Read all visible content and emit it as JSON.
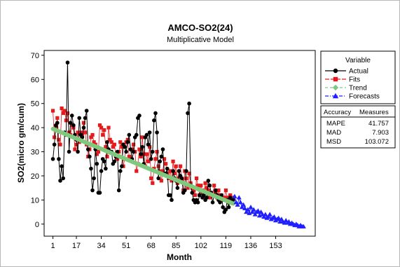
{
  "chart_data": {
    "type": "line",
    "title": "AMCO-SO2(24)",
    "subtitle": "Multiplicative Model",
    "xlabel": "Month",
    "ylabel": "SO2(micro gm/cum)",
    "xlim": [
      -5,
      180
    ],
    "ylim": [
      -5,
      72
    ],
    "x_ticks": [
      1,
      17,
      34,
      51,
      68,
      85,
      102,
      119,
      136,
      153
    ],
    "y_ticks": [
      0,
      10,
      20,
      30,
      40,
      50,
      60,
      70
    ],
    "grid": false,
    "legend_position": "right",
    "legend_title": "Variable",
    "series": [
      {
        "name": "Actual",
        "color": "#000000",
        "marker": "circle",
        "x": [
          1,
          2,
          3,
          4,
          5,
          6,
          7,
          8,
          9,
          10,
          11,
          12,
          13,
          14,
          15,
          16,
          17,
          18,
          19,
          20,
          21,
          22,
          23,
          24,
          25,
          26,
          27,
          28,
          29,
          30,
          31,
          32,
          33,
          34,
          35,
          36,
          37,
          38,
          39,
          40,
          41,
          42,
          43,
          44,
          45,
          46,
          47,
          48,
          49,
          50,
          51,
          52,
          53,
          54,
          55,
          56,
          57,
          58,
          59,
          60,
          61,
          62,
          63,
          64,
          65,
          66,
          67,
          68,
          69,
          70,
          71,
          72,
          73,
          74,
          75,
          76,
          77,
          78,
          79,
          80,
          81,
          82,
          83,
          84,
          85,
          86,
          87,
          88,
          89,
          90,
          91,
          92,
          93,
          94,
          95,
          96,
          97,
          98,
          99,
          100,
          101,
          102,
          103,
          104,
          105,
          106,
          107,
          108,
          109,
          110,
          111,
          112,
          113,
          114,
          115,
          116,
          117,
          118,
          119,
          120,
          121,
          122,
          123,
          124
        ],
        "values": [
          27,
          33,
          41,
          42,
          27,
          18,
          24,
          19,
          38,
          37,
          67,
          30,
          42,
          45,
          41,
          37,
          35,
          30,
          44,
          37,
          36,
          40,
          44,
          47,
          31,
          28,
          23,
          14,
          19,
          31,
          25,
          13,
          13,
          22,
          27,
          26,
          23,
          34,
          31,
          30,
          30,
          25,
          26,
          28,
          30,
          14,
          22,
          24,
          33,
          32,
          30,
          34,
          37,
          31,
          27,
          30,
          36,
          37,
          44,
          45,
          29,
          32,
          25,
          36,
          37,
          33,
          38,
          27,
          30,
          43,
          46,
          38,
          19,
          26,
          28,
          31,
          21,
          21,
          23,
          12,
          12,
          10,
          22,
          19,
          18,
          15,
          22,
          20,
          19,
          13,
          14,
          22,
          46,
          50,
          16,
          13,
          10,
          9,
          10,
          9,
          12,
          14,
          11,
          12,
          10,
          11,
          18,
          16,
          13,
          9,
          12,
          14,
          12,
          10,
          9,
          12,
          7,
          5,
          6,
          10,
          7,
          11,
          9,
          10
        ]
      },
      {
        "name": "Fits",
        "color": "#e41a1c",
        "marker": "square",
        "x": [
          1,
          2,
          3,
          4,
          5,
          6,
          7,
          8,
          9,
          10,
          11,
          12,
          13,
          14,
          15,
          16,
          17,
          18,
          19,
          20,
          21,
          22,
          23,
          24,
          25,
          26,
          27,
          28,
          29,
          30,
          31,
          32,
          33,
          34,
          35,
          36,
          37,
          38,
          39,
          40,
          41,
          42,
          43,
          44,
          45,
          46,
          47,
          48,
          49,
          50,
          51,
          52,
          53,
          54,
          55,
          56,
          57,
          58,
          59,
          60,
          61,
          62,
          63,
          64,
          65,
          66,
          67,
          68,
          69,
          70,
          71,
          72,
          73,
          74,
          75,
          76,
          77,
          78,
          79,
          80,
          81,
          82,
          83,
          84,
          85,
          86,
          87,
          88,
          89,
          90,
          91,
          92,
          93,
          94,
          95,
          96,
          97,
          98,
          99,
          100,
          101,
          102,
          103,
          104,
          105,
          106,
          107,
          108,
          109,
          110,
          111,
          112,
          113,
          114,
          115,
          116,
          117,
          118,
          119,
          120,
          121,
          122,
          123,
          124
        ],
        "values": [
          47,
          36,
          40,
          44,
          35,
          33,
          48,
          46,
          47,
          43,
          46,
          38,
          37,
          41,
          40,
          31,
          33,
          38,
          34,
          38,
          37,
          42,
          38,
          33,
          28,
          31,
          36,
          37,
          34,
          33,
          29,
          30,
          41,
          40,
          37,
          39,
          32,
          28,
          40,
          35,
          34,
          32,
          33,
          28,
          27,
          30,
          34,
          32,
          24,
          27,
          34,
          35,
          28,
          27,
          31,
          33,
          30,
          22,
          25,
          31,
          28,
          36,
          29,
          24,
          29,
          26,
          32,
          19,
          17,
          23,
          27,
          30,
          24,
          22,
          18,
          22,
          27,
          25,
          21,
          19,
          22,
          18,
          26,
          21,
          24,
          17,
          19,
          24,
          18,
          14,
          22,
          19,
          15,
          21,
          17,
          15,
          14,
          12,
          19,
          16,
          12,
          16,
          14,
          13,
          17,
          15,
          14,
          11,
          13,
          12,
          16,
          13,
          11,
          14,
          12,
          12,
          10,
          11,
          14,
          11,
          9,
          12,
          10,
          11
        ]
      },
      {
        "name": "Trend",
        "color": "#7fc97f",
        "marker": "diamond",
        "x": [
          1,
          124
        ],
        "values": [
          39.5,
          8.5
        ]
      },
      {
        "name": "Forecasts",
        "color": "#1f1fff",
        "marker": "triangle",
        "x": [
          125,
          126,
          127,
          128,
          129,
          130,
          131,
          132,
          133,
          134,
          135,
          136,
          137,
          138,
          139,
          140,
          141,
          142,
          143,
          144,
          145,
          146,
          147,
          148,
          149,
          150,
          151,
          152,
          153,
          154,
          155,
          156,
          157,
          158,
          159,
          160,
          161,
          162,
          163,
          164,
          165,
          166,
          167,
          168,
          169,
          170,
          171,
          172
        ],
        "values": [
          11.5,
          9,
          8,
          11,
          9,
          7,
          8,
          6.5,
          5,
          6,
          4.5,
          7,
          5,
          6,
          4,
          5,
          5.5,
          3.5,
          5,
          4,
          3,
          4,
          2.5,
          3,
          4,
          2,
          2.5,
          3,
          1.5,
          2,
          2.5,
          1,
          2,
          1,
          0.5,
          1.5,
          0.5,
          1,
          0,
          0.5,
          0,
          -0.5,
          0,
          -0.5,
          -1,
          -0.5,
          -1,
          -1
        ]
      }
    ]
  },
  "accuracy": {
    "header_left": "Accuracy",
    "header_right": "Measures",
    "rows": [
      {
        "label": "MAPE",
        "value": "41.757"
      },
      {
        "label": "MAD",
        "value": "7.903"
      },
      {
        "label": "MSD",
        "value": "103.072"
      }
    ]
  }
}
